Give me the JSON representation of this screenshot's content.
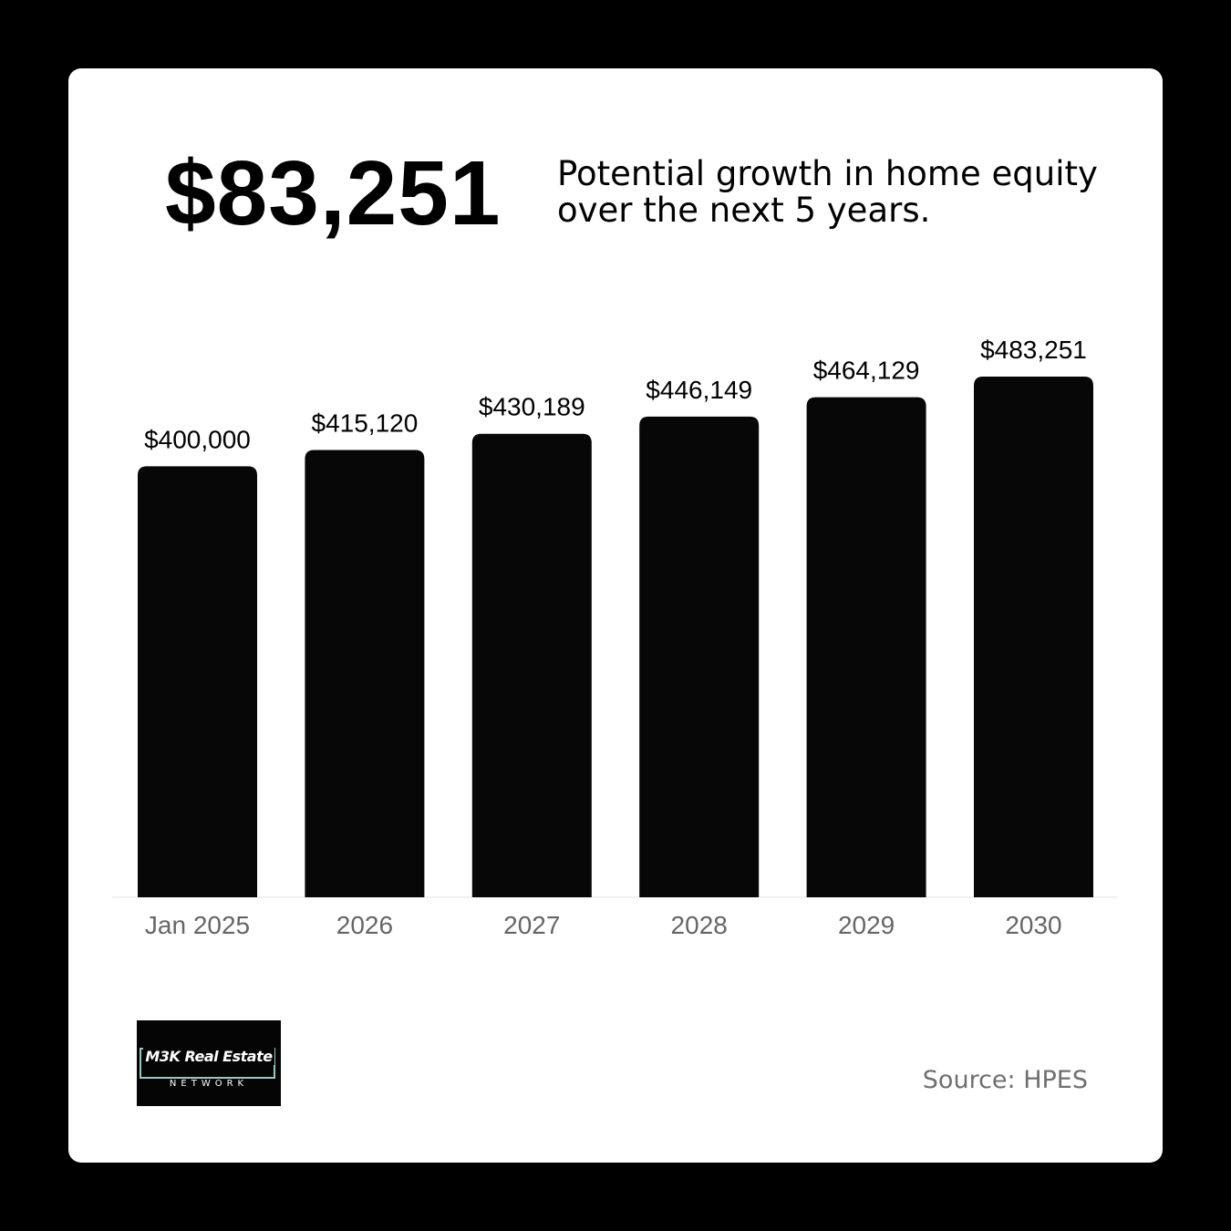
{
  "header": {
    "amount": "$83,251",
    "description": "Potential growth in home equity over the next 5 years."
  },
  "colors": {
    "background": "#000000",
    "card": "#ffffff",
    "bar": "#070707",
    "axis_label": "#666666",
    "source": "#6f6f6f",
    "logo_accent": "#9ec5c1"
  },
  "chart_data": {
    "type": "bar",
    "categories": [
      "Jan 2025",
      "2026",
      "2027",
      "2028",
      "2029",
      "2030"
    ],
    "values": [
      400000,
      415120,
      430189,
      446149,
      464129,
      483251
    ],
    "value_labels": [
      "$400,000",
      "$415,120",
      "$430,189",
      "$446,149",
      "$464,129",
      "$483,251"
    ],
    "title": "",
    "xlabel": "",
    "ylabel": "",
    "ylim": [
      0,
      483251
    ],
    "grid": false,
    "legend": "none"
  },
  "logo": {
    "title": "M3K Real Estate",
    "subtitle": "NETWORK"
  },
  "footer": {
    "source": "Source: HPES"
  }
}
